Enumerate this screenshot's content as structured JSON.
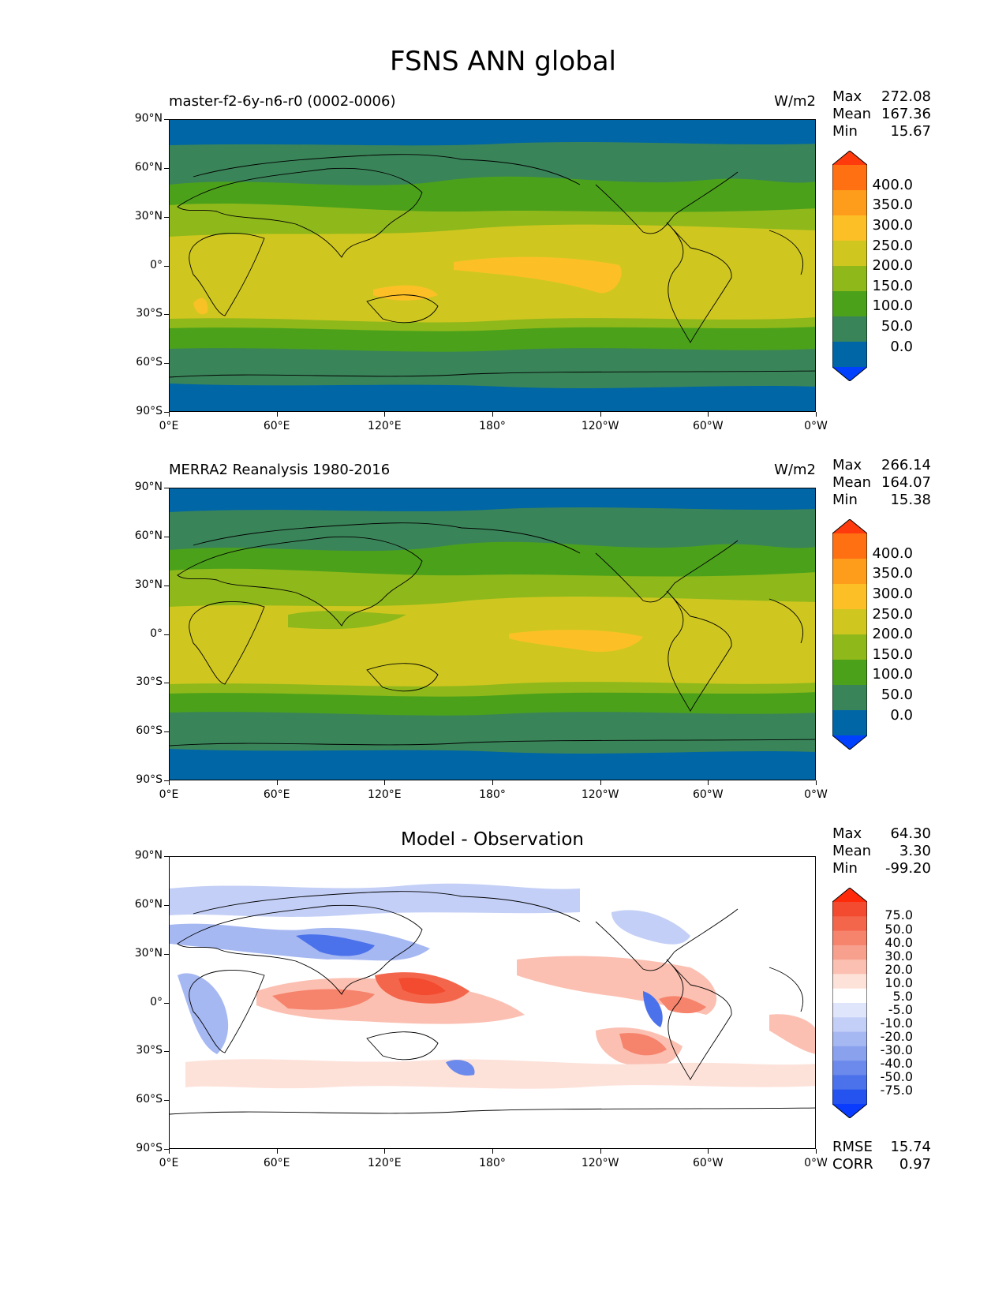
{
  "figure": {
    "title": "FSNS ANN global"
  },
  "axes": {
    "yticks": [
      "90°N",
      "60°N",
      "30°N",
      "0°",
      "30°S",
      "60°S",
      "90°S"
    ],
    "xticks": [
      "0°E",
      "60°E",
      "120°E",
      "180°",
      "120°W",
      "60°W",
      "0°W"
    ]
  },
  "panels": [
    {
      "title_left": "master-f2-6y-n6-r0 (0002-0006)",
      "title_right": "W/m2",
      "stats": {
        "max_label": "Max",
        "max": "272.08",
        "mean_label": "Mean",
        "mean": "167.36",
        "min_label": "Min",
        "min": "15.67"
      },
      "colorbar": {
        "labels": [
          "400.0",
          "350.0",
          "300.0",
          "250.0",
          "200.0",
          "150.0",
          "100.0",
          "50.0",
          "0.0"
        ],
        "colors": [
          "#ff3a0c",
          "#ff7013",
          "#fd9d1b",
          "#fcc026",
          "#cfc71f",
          "#8fb81b",
          "#4ba21a",
          "#3a8459",
          "#0066a6",
          "#0040ff"
        ]
      }
    },
    {
      "title_left": "MERRA2 Reanalysis 1980-2016",
      "title_right": "W/m2",
      "stats": {
        "max_label": "Max",
        "max": "266.14",
        "mean_label": "Mean",
        "mean": "164.07",
        "min_label": "Min",
        "min": "15.38"
      },
      "colorbar": {
        "labels": [
          "400.0",
          "350.0",
          "300.0",
          "250.0",
          "200.0",
          "150.0",
          "100.0",
          "50.0",
          "0.0"
        ],
        "colors": [
          "#ff3a0c",
          "#ff7013",
          "#fd9d1b",
          "#fcc026",
          "#cfc71f",
          "#8fb81b",
          "#4ba21a",
          "#3a8459",
          "#0066a6",
          "#0040ff"
        ]
      }
    },
    {
      "title_center": "Model - Observation",
      "stats": {
        "max_label": "Max",
        "max": "64.30",
        "mean_label": "Mean",
        "mean": "3.30",
        "min_label": "Min",
        "min": "-99.20"
      },
      "colorbar": {
        "labels": [
          "75.0",
          "50.0",
          "40.0",
          "30.0",
          "20.0",
          "10.0",
          "5.0",
          "-5.0",
          "-10.0",
          "-20.0",
          "-30.0",
          "-40.0",
          "-50.0",
          "-75.0"
        ],
        "colors": [
          "#ff2a0a",
          "#f24b30",
          "#f4664c",
          "#f6836c",
          "#f8a08e",
          "#fbc0b2",
          "#fde2da",
          "#ffffff",
          "#dfe5fb",
          "#c3cff6",
          "#a6b8f2",
          "#8aa2ee",
          "#6c8aeb",
          "#4c72eb",
          "#2553f0",
          "#0a3cff"
        ]
      },
      "metrics": {
        "rmse_label": "RMSE",
        "rmse": "15.74",
        "corr_label": "CORR",
        "corr": "0.97"
      }
    }
  ]
}
